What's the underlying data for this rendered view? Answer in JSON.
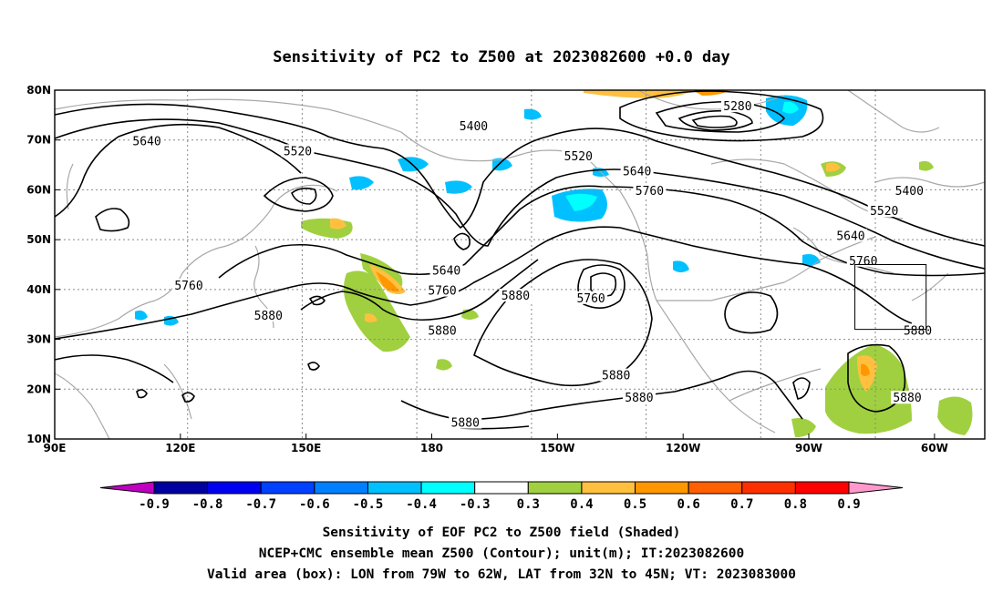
{
  "title": "Sensitivity of PC2 to Z500 at 2023082600 +0.0 day",
  "map": {
    "lon_ticks": [
      {
        "lon": 90,
        "label": "90E"
      },
      {
        "lon": 120,
        "label": "120E"
      },
      {
        "lon": 150,
        "label": "150E"
      },
      {
        "lon": 180,
        "label": "180"
      },
      {
        "lon": 210,
        "label": "150W"
      },
      {
        "lon": 240,
        "label": "120W"
      },
      {
        "lon": 270,
        "label": "90W"
      },
      {
        "lon": 300,
        "label": "60W"
      }
    ],
    "lat_ticks": [
      {
        "lat": 80,
        "label": "80N"
      },
      {
        "lat": 70,
        "label": "70N"
      },
      {
        "lat": 60,
        "label": "60N"
      },
      {
        "lat": 50,
        "label": "50N"
      },
      {
        "lat": 40,
        "label": "40N"
      },
      {
        "lat": 30,
        "label": "30N"
      },
      {
        "lat": 20,
        "label": "20N"
      },
      {
        "lat": 10,
        "label": "10N"
      }
    ],
    "contour_labels": [
      {
        "text": "5640",
        "lon": 112,
        "lat": 69.5
      },
      {
        "text": "5520",
        "lon": 148,
        "lat": 67.5
      },
      {
        "text": "5400",
        "lon": 190,
        "lat": 72.5
      },
      {
        "text": "5280",
        "lon": 253,
        "lat": 76.5
      },
      {
        "text": "5520",
        "lon": 215,
        "lat": 66.5
      },
      {
        "text": "5640",
        "lon": 229,
        "lat": 63.5
      },
      {
        "text": "5760",
        "lon": 232,
        "lat": 59.5
      },
      {
        "text": "5400",
        "lon": 294,
        "lat": 59.5
      },
      {
        "text": "5520",
        "lon": 288,
        "lat": 55.5
      },
      {
        "text": "5640",
        "lon": 280,
        "lat": 50.5
      },
      {
        "text": "5760",
        "lon": 283,
        "lat": 45.5
      },
      {
        "text": "5880",
        "lon": 296,
        "lat": 31.5
      },
      {
        "text": "5760",
        "lon": 122,
        "lat": 40.5
      },
      {
        "text": "5880",
        "lon": 141,
        "lat": 34.5
      },
      {
        "text": "5640",
        "lon": 183.5,
        "lat": 43.5
      },
      {
        "text": "5760",
        "lon": 182.5,
        "lat": 39.5
      },
      {
        "text": "5880",
        "lon": 182.5,
        "lat": 31.5
      },
      {
        "text": "5880",
        "lon": 200,
        "lat": 38.5
      },
      {
        "text": "5760",
        "lon": 218,
        "lat": 38
      },
      {
        "text": "5880",
        "lon": 224,
        "lat": 22.5
      },
      {
        "text": "5880",
        "lon": 229.5,
        "lat": 18
      },
      {
        "text": "5880",
        "lon": 188,
        "lat": 13
      },
      {
        "text": "5880",
        "lon": 293.5,
        "lat": 18
      }
    ]
  },
  "valid_box": {
    "lon_min": 281,
    "lon_max": 298,
    "lat_min": 32,
    "lat_max": 45
  },
  "colorbar": {
    "labels": [
      "-0.9",
      "-0.8",
      "-0.7",
      "-0.6",
      "-0.5",
      "-0.4",
      "-0.3",
      "0.3",
      "0.4",
      "0.5",
      "0.6",
      "0.7",
      "0.8",
      "0.9"
    ],
    "colors": [
      "#0000a0",
      "#0000f0",
      "#0040ff",
      "#0080ff",
      "#00c0ff",
      "#00ffff",
      "#ffffff",
      "#a0d040",
      "#ffc040",
      "#ff9800",
      "#ff6000",
      "#ff3000",
      "#ff0000"
    ],
    "low_end_color": "#c000c0",
    "high_end_color": "#ff99cc"
  },
  "caption": {
    "line1": "Sensitivity of EOF PC2 to Z500 field (Shaded)",
    "line2": "NCEP+CMC ensemble mean Z500 (Contour); unit(m); IT:2023082600",
    "line3": "Valid area (box): LON from 79W to 62W, LAT from 32N to 45N; VT: 2023083000"
  }
}
